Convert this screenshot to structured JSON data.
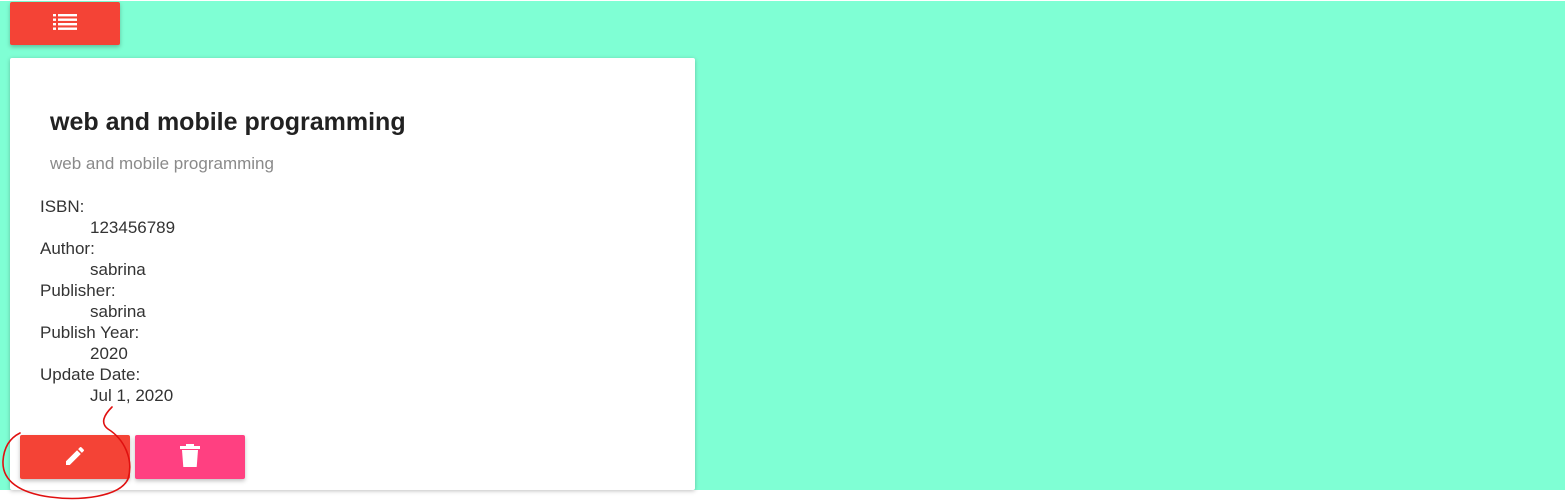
{
  "colors": {
    "background": "#7fffd4",
    "primary_button": "#f44336",
    "accent_button": "#ff4081",
    "annotation": "#e01010"
  },
  "toolbar": {
    "menu_icon": "list-icon"
  },
  "book": {
    "title": "web and mobile programming",
    "subtitle": "web and mobile programming",
    "details": [
      {
        "label": "ISBN:",
        "value": "123456789"
      },
      {
        "label": "Author:",
        "value": "sabrina"
      },
      {
        "label": "Publisher:",
        "value": "sabrina"
      },
      {
        "label": "Publish Year:",
        "value": "2020"
      },
      {
        "label": "Update Date:",
        "value": "Jul 1, 2020"
      }
    ]
  },
  "actions": {
    "edit_icon": "pencil-icon",
    "delete_icon": "trash-icon"
  }
}
